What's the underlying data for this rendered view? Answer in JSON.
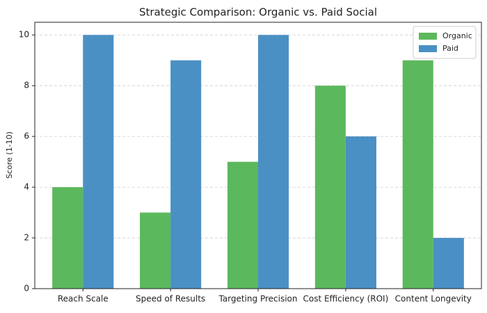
{
  "chart_data": {
    "type": "bar",
    "title": "Strategic Comparison: Organic vs. Paid Social",
    "ylabel": "Score (1-10)",
    "categories": [
      "Reach Scale",
      "Speed of Results",
      "Targeting Precision",
      "Cost Efficiency (ROI)",
      "Content Longevity"
    ],
    "series": [
      {
        "name": "Organic",
        "color": "#5cb85c",
        "values": [
          4,
          3,
          5,
          8,
          9
        ]
      },
      {
        "name": "Paid",
        "color": "#4a90c4",
        "values": [
          10,
          9,
          10,
          6,
          2
        ]
      }
    ],
    "ylim": [
      0,
      10.5
    ],
    "yticks": [
      0,
      2,
      4,
      6,
      8,
      10
    ],
    "grid": true,
    "legend": "upper right"
  }
}
